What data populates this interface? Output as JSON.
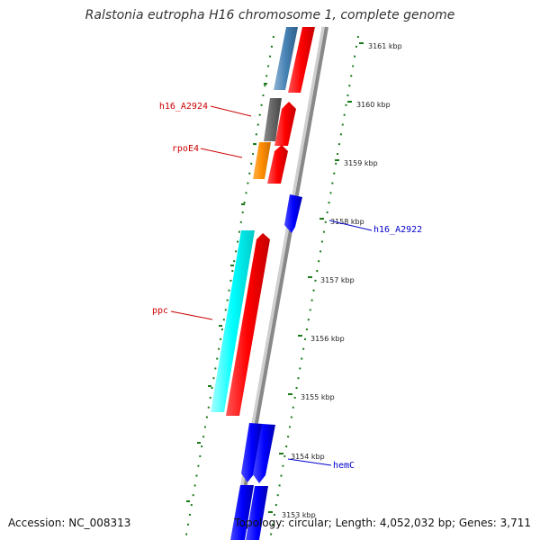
{
  "title": "Ralstonia eutropha H16 chromosome 1, complete genome",
  "accession": "Accession: NC_008313",
  "summary": "Topology: circular; Length: 4,052,032 bp; Genes: 3,711",
  "colors": {
    "forward_label": "#cc0000",
    "reverse_label": "#0000cc",
    "backbone": "#888888",
    "tick": "#1a7a1a"
  },
  "ticks": [
    {
      "label": "3161 kbp"
    },
    {
      "label": "3160 kbp"
    },
    {
      "label": "3159 kbp"
    },
    {
      "label": "3158 kbp"
    },
    {
      "label": "3157 kbp"
    },
    {
      "label": "3156 kbp"
    },
    {
      "label": "3155 kbp"
    },
    {
      "label": "3154 kbp"
    },
    {
      "label": "3153 kbp"
    }
  ],
  "gene_labels": {
    "h16_A2924": "h16_A2924",
    "rpoE4": "rpoE4",
    "h16_A2922": "h16_A2922",
    "ppc": "ppc",
    "hemC": "hemC"
  },
  "features": [
    {
      "name": "steelblue-cog",
      "color": "#4682b4"
    },
    {
      "name": "red-forward-1",
      "color": "#ff0000"
    },
    {
      "name": "gray-cog",
      "color": "#666666"
    },
    {
      "name": "orange-cog",
      "color": "#ff8c00"
    },
    {
      "name": "cyan-cog",
      "color": "#00ffff"
    },
    {
      "name": "blue-reverse",
      "color": "#0000ff"
    }
  ]
}
